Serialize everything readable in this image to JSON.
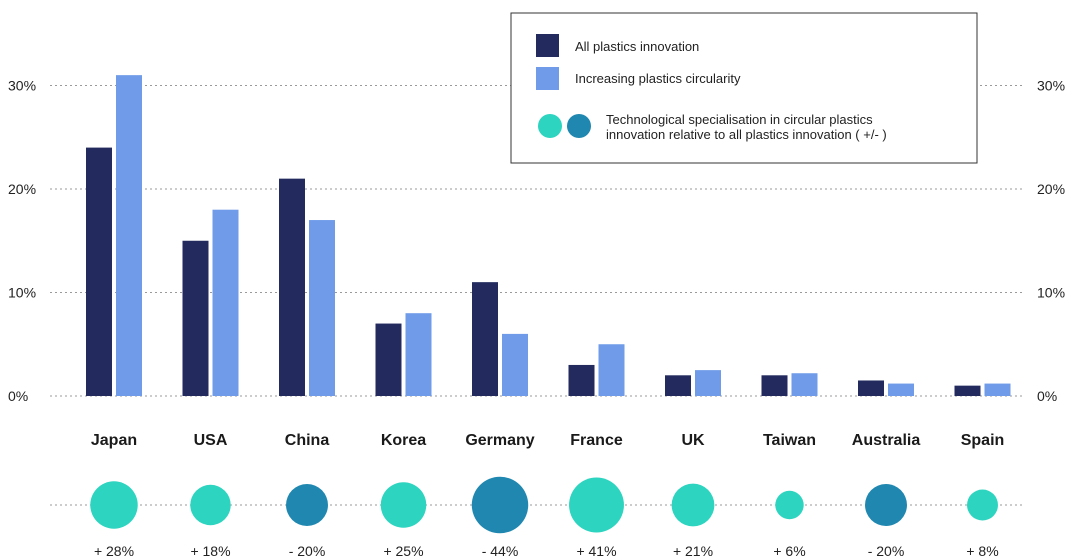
{
  "chart_data": {
    "type": "bar",
    "categories": [
      "Japan",
      "USA",
      "China",
      "Korea",
      "Germany",
      "France",
      "UK",
      "Taiwan",
      "Australia",
      "Spain"
    ],
    "series": [
      {
        "name": "All plastics innovation",
        "values": [
          24,
          15,
          21,
          7,
          11,
          3,
          2,
          2,
          1.5,
          1
        ]
      },
      {
        "name": "Increasing plastics circularity",
        "values": [
          31,
          18,
          17,
          8,
          6,
          5,
          2.5,
          2.2,
          1.2,
          1.2
        ]
      }
    ],
    "y_ticks": [
      "0%",
      "10%",
      "20%",
      "30%"
    ],
    "ylim": [
      0,
      33
    ],
    "grid": true,
    "legend_position": "top-right",
    "specialisation": {
      "legend_label": "Technological specialisation in circular plastics innovation relative to all plastics innovation ( +/- )",
      "values": [
        28,
        18,
        -20,
        25,
        -44,
        41,
        21,
        6,
        -20,
        8
      ],
      "labels": [
        "+ 28%",
        "+ 18%",
        "- 20%",
        "+ 25%",
        "- 44%",
        "+ 41%",
        "+ 21%",
        "+ 6%",
        "- 20%",
        "+ 8%"
      ],
      "positive_color": "#2dd4bf",
      "negative_color": "#1f87b0"
    },
    "colors": {
      "series_1": "#222a5e",
      "series_2": "#6f9be8"
    }
  }
}
